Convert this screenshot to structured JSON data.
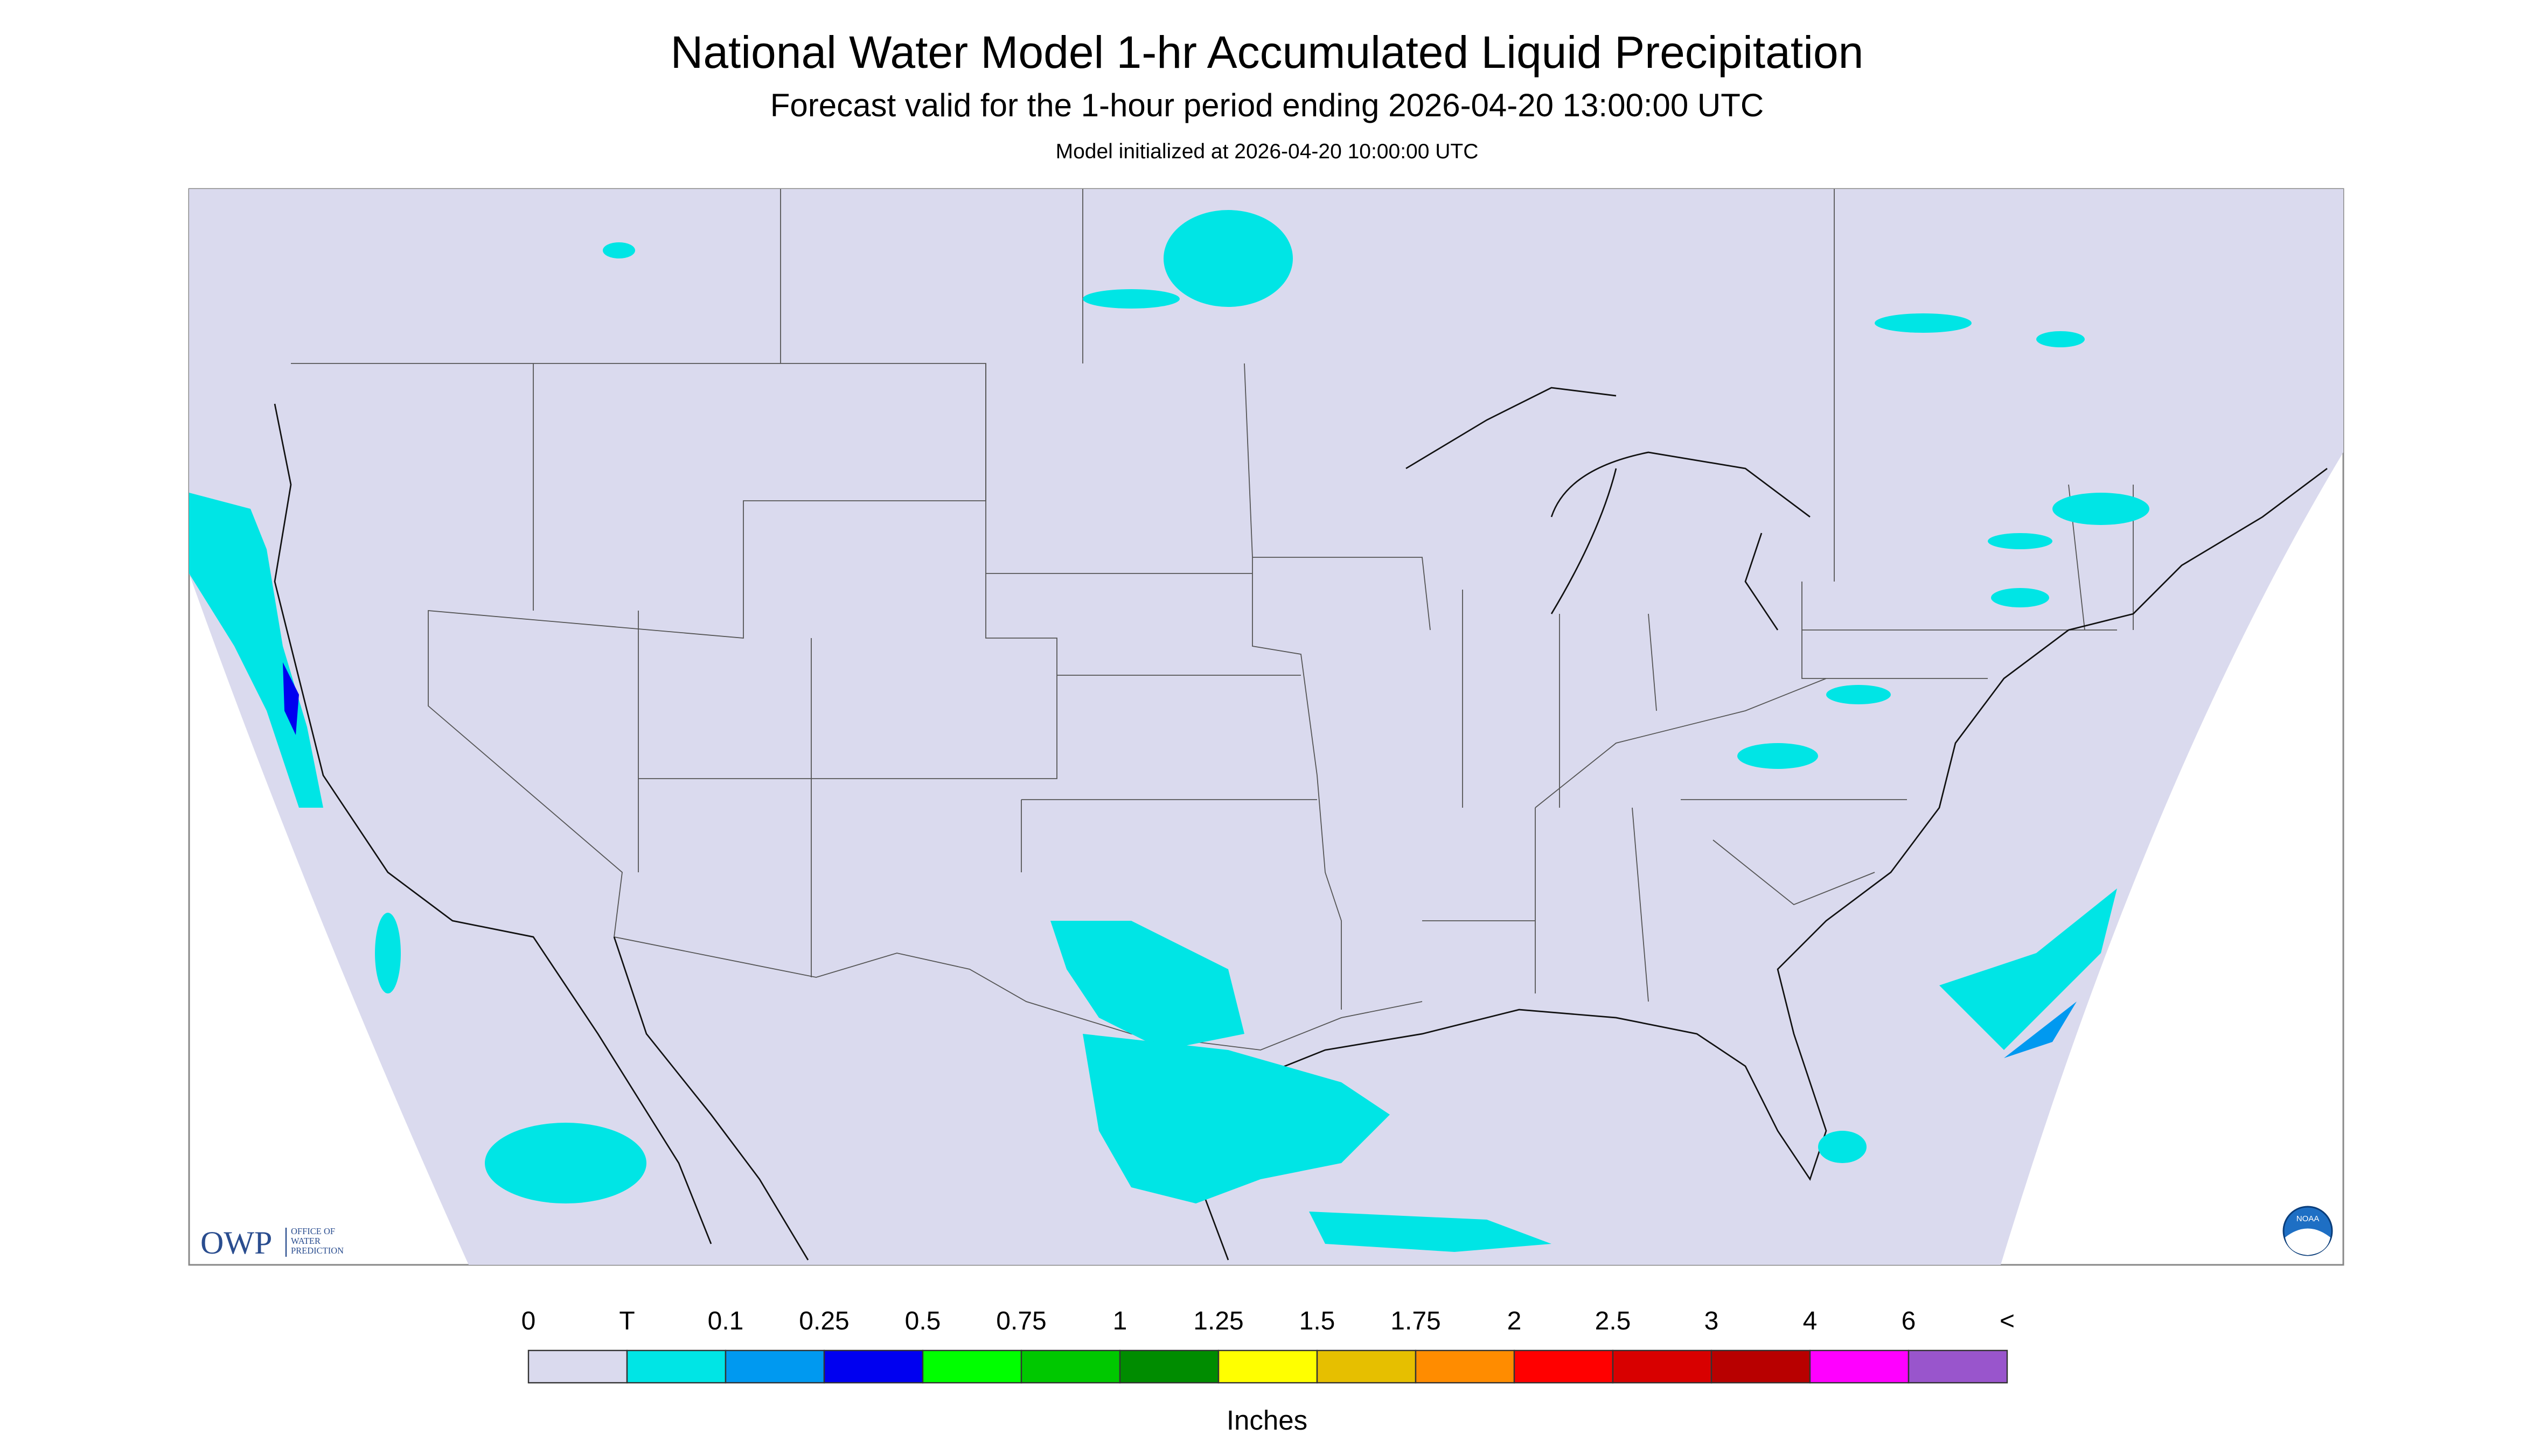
{
  "header": {
    "title": "National Water Model 1-hr Accumulated Liquid Precipitation",
    "subtitle": "Forecast valid for the 1-hour period ending 2026-04-20 13:00:00 UTC",
    "note": "Model initialized at 2026-04-20 10:00:00 UTC"
  },
  "legend": {
    "labels": [
      "0",
      "T",
      "0.1",
      "0.25",
      "0.5",
      "0.75",
      "1",
      "1.25",
      "1.5",
      "1.75",
      "2",
      "2.5",
      "3",
      "4",
      "6",
      "<"
    ],
    "colors": [
      "#dadaee",
      "#00e5e5",
      "#0099f0",
      "#0000f0",
      "#00ff00",
      "#00c800",
      "#008c00",
      "#ffff00",
      "#e6bf00",
      "#ff8c00",
      "#ff0000",
      "#d80000",
      "#b80000",
      "#ff00ff",
      "#9955cc"
    ],
    "unit": "Inches"
  },
  "logo": {
    "short": "OWP",
    "long": [
      "OFFICE OF",
      "WATER",
      "PREDICTION"
    ],
    "agency": "NOAA"
  }
}
